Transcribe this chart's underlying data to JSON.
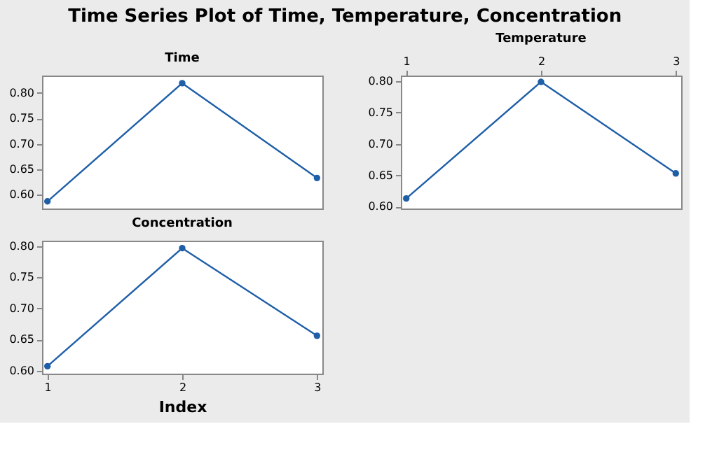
{
  "chart_data": [
    {
      "type": "line",
      "title": "Time",
      "annotations": [
        "Time Series Plot of Time, Temperature, Concentration"
      ],
      "x": [
        1,
        2,
        3
      ],
      "values": [
        0.587,
        0.819,
        0.633
      ],
      "color": "#1f5fa8",
      "marker": "circle",
      "line_style": "solid",
      "xlim": [
        0.96,
        3.04
      ],
      "ylim": [
        0.573,
        0.834
      ],
      "yticks": [
        {
          "value": 0.6,
          "label": "0.60"
        },
        {
          "value": 0.65,
          "label": "0.65"
        },
        {
          "value": 0.7,
          "label": "0.70"
        },
        {
          "value": 0.75,
          "label": "0.75"
        },
        {
          "value": 0.8,
          "label": "0.80"
        }
      ],
      "tick_labels": "y",
      "grid": false
    },
    {
      "type": "line",
      "title": "Concentration",
      "xlabel": "Index",
      "x": [
        1,
        2,
        3
      ],
      "values": [
        0.607,
        0.797,
        0.656
      ],
      "color": "#1f5fa8",
      "marker": "circle",
      "line_style": "solid",
      "xlim": [
        0.96,
        3.04
      ],
      "xticks": [
        1,
        2,
        3
      ],
      "ylim": [
        0.595,
        0.809
      ],
      "yticks": [
        {
          "value": 0.6,
          "label": "0.60"
        },
        {
          "value": 0.65,
          "label": "0.65"
        },
        {
          "value": 0.7,
          "label": "0.70"
        },
        {
          "value": 0.75,
          "label": "0.75"
        },
        {
          "value": 0.8,
          "label": "0.80"
        }
      ],
      "grid": false
    },
    {
      "type": "line",
      "title": "Temperature",
      "x": [
        1,
        2,
        3
      ],
      "values": [
        0.613,
        0.799,
        0.653
      ],
      "color": "#1f5fa8",
      "marker": "circle",
      "line_style": "solid",
      "xlim": [
        0.96,
        3.04
      ],
      "xticks": [
        1,
        2,
        3
      ],
      "ylim": [
        0.597,
        0.809
      ],
      "yticks": [
        {
          "value": 0.6,
          "label": "0.60"
        },
        {
          "value": 0.65,
          "label": "0.65"
        },
        {
          "value": 0.7,
          "label": "0.70"
        },
        {
          "value": 0.75,
          "label": "0.75"
        },
        {
          "value": 0.8,
          "label": "0.80"
        }
      ],
      "grid": false
    }
  ]
}
